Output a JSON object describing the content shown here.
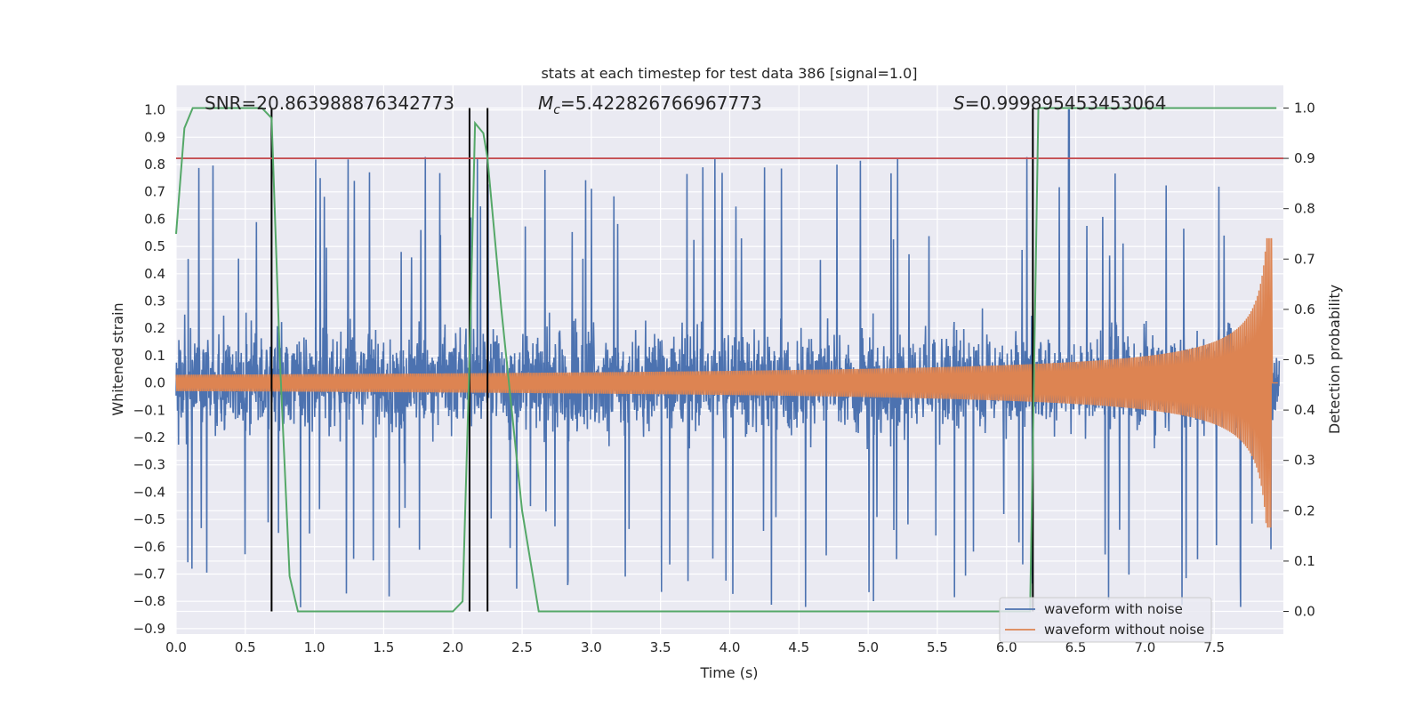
{
  "chart_data": {
    "type": "line",
    "title": "stats at each timestep for test data 386 [signal=1.0]",
    "xlabel": "Time (s)",
    "ylabel": "Whitened strain",
    "ylabel_right": "Detection probability",
    "xlim": [
      0.0,
      8.0
    ],
    "ylim": [
      -0.92,
      1.09
    ],
    "ylim_right": [
      -0.045,
      1.045
    ],
    "x_ticks": [
      "0.0",
      "0.5",
      "1.0",
      "1.5",
      "2.0",
      "2.5",
      "3.0",
      "3.5",
      "4.0",
      "4.5",
      "5.0",
      "5.5",
      "6.0",
      "6.5",
      "7.0",
      "7.5"
    ],
    "y_ticks": [
      "1.0",
      "0.9",
      "0.8",
      "0.7",
      "0.6",
      "0.5",
      "0.4",
      "0.3",
      "0.2",
      "0.1",
      "0.0",
      "−0.1",
      "−0.2",
      "−0.3",
      "−0.4",
      "−0.5",
      "−0.6",
      "−0.7",
      "−0.8",
      "−0.9"
    ],
    "y_ticks_right": [
      "1.0",
      "0.9",
      "0.8",
      "0.7",
      "0.6",
      "0.5",
      "0.4",
      "0.3",
      "0.2",
      "0.1",
      "0.0"
    ],
    "annotations": {
      "snr": "SNR=20.863988876342773",
      "mc_symbol": "M",
      "mc_sub": "c",
      "mc_value": "=5.422826766967773",
      "s_symbol": "S",
      "s_value": "=0.999895453453064"
    },
    "grid": true,
    "legend_position": "lower-right",
    "series": [
      {
        "name": "waveform with noise",
        "color": "#4c72b0",
        "envelope": "noise ~ ±0.3 to ±0.7 typical, peak 1.0 near t=6.45"
      },
      {
        "name": "waveform without noise",
        "color": "#dd8452",
        "amplitude_start": 0.03,
        "amplitude_peak": 0.53,
        "merger_time": 7.92
      }
    ],
    "detection_probability": {
      "color": "#55a868",
      "x": [
        0.0,
        0.06,
        0.12,
        0.2,
        0.3,
        0.4,
        0.5,
        0.62,
        0.69,
        0.75,
        0.82,
        0.88,
        0.95,
        1.1,
        1.5,
        2.0,
        2.07,
        2.12,
        2.16,
        2.22,
        2.25,
        2.35,
        2.5,
        2.62,
        2.8,
        3.5,
        4.5,
        5.5,
        6.0,
        6.17,
        6.2,
        6.23,
        6.27,
        6.4,
        7.0,
        7.5,
        7.95
      ],
      "y": [
        0.75,
        0.96,
        1.0,
        1.0,
        1.0,
        1.0,
        1.0,
        1.0,
        0.98,
        0.5,
        0.07,
        0.0,
        0.0,
        0.0,
        0.0,
        0.0,
        0.02,
        0.5,
        0.97,
        0.95,
        0.9,
        0.6,
        0.2,
        0.0,
        0.0,
        0.0,
        0.0,
        0.0,
        0.0,
        0.0,
        0.5,
        1.0,
        1.0,
        1.0,
        1.0,
        1.0,
        1.0
      ]
    },
    "threshold_line": {
      "value": 0.9,
      "axis": "right",
      "color": "#c44e52"
    },
    "vertical_markers": {
      "x": [
        0.69,
        2.12,
        2.25,
        6.19
      ],
      "color": "#000000"
    }
  }
}
